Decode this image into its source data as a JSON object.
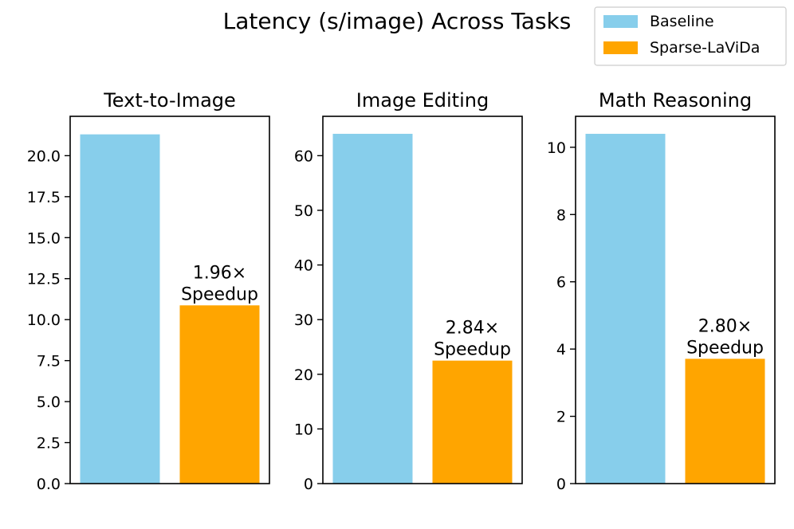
{
  "figure": {
    "title": "Latency (s/image) Across Tasks",
    "legend": {
      "placement": "top-right",
      "entries": [
        {
          "label": "Baseline",
          "color": "#87CEEB"
        },
        {
          "label": "Sparse-LaViDa",
          "color": "#FFA500"
        }
      ]
    }
  },
  "chart_data": [
    {
      "type": "bar",
      "title": "Text-to-Image",
      "categories": [
        "Baseline",
        "Sparse-LaViDa"
      ],
      "values": [
        21.3,
        10.87
      ],
      "colors": [
        "#87CEEB",
        "#FFA500"
      ],
      "ylim": [
        0,
        22.4
      ],
      "yticks": [
        0,
        2.5,
        5,
        7.5,
        10,
        12.5,
        15,
        17.5,
        20
      ],
      "ytick_labels": [
        "0.0",
        "2.5",
        "5.0",
        "7.5",
        "10.0",
        "12.5",
        "15.0",
        "17.5",
        "20.0"
      ],
      "annotation": {
        "line1": "1.96×",
        "line2": "Speedup"
      },
      "xticks": false
    },
    {
      "type": "bar",
      "title": "Image Editing",
      "categories": [
        "Baseline",
        "Sparse-LaViDa"
      ],
      "values": [
        64.0,
        22.5
      ],
      "colors": [
        "#87CEEB",
        "#FFA500"
      ],
      "ylim": [
        0,
        67.2
      ],
      "yticks": [
        0,
        10,
        20,
        30,
        40,
        50,
        60
      ],
      "ytick_labels": [
        "0",
        "10",
        "20",
        "30",
        "40",
        "50",
        "60"
      ],
      "annotation": {
        "line1": "2.84×",
        "line2": "Speedup"
      },
      "xticks": false
    },
    {
      "type": "bar",
      "title": "Math Reasoning",
      "categories": [
        "Baseline",
        "Sparse-LaViDa"
      ],
      "values": [
        10.4,
        3.71
      ],
      "colors": [
        "#87CEEB",
        "#FFA500"
      ],
      "ylim": [
        0,
        10.92
      ],
      "yticks": [
        0,
        2,
        4,
        6,
        8,
        10
      ],
      "ytick_labels": [
        "0",
        "2",
        "4",
        "6",
        "8",
        "10"
      ],
      "annotation": {
        "line1": "2.80×",
        "line2": "Speedup"
      },
      "xticks": false
    }
  ]
}
